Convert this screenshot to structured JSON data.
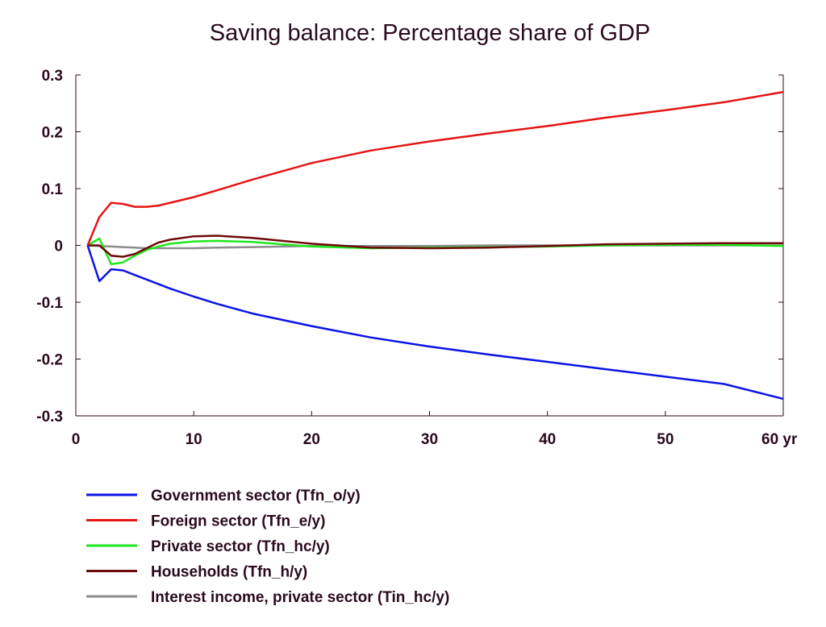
{
  "chart_data": {
    "type": "line",
    "title": "Saving balance: Percentage share of GDP",
    "xlabel": "",
    "ylabel": "",
    "x_unit_label": "yr",
    "xlim": [
      0,
      60
    ],
    "ylim": [
      -0.3,
      0.3
    ],
    "x_ticks": [
      0,
      10,
      20,
      30,
      40,
      50,
      60
    ],
    "x_tick_labels": [
      "0",
      "10",
      "20",
      "30",
      "40",
      "50",
      "60 yr"
    ],
    "y_ticks": [
      0.3,
      0.2,
      0.1,
      0,
      -0.1,
      -0.2,
      -0.3
    ],
    "y_tick_labels": [
      "0.3",
      "0.2",
      "0.1",
      "0",
      "-0.1",
      "-0.2",
      "-0.3"
    ],
    "grid": false,
    "legend_position": "bottom",
    "x": [
      1,
      2,
      3,
      4,
      5,
      6,
      7,
      8,
      10,
      12,
      15,
      20,
      25,
      30,
      35,
      40,
      45,
      50,
      55,
      60
    ],
    "series": [
      {
        "name": "Government sector (Tfn_o/y)",
        "color": "#0a14e6",
        "values": [
          0,
          -0.063,
          -0.042,
          -0.044,
          -0.052,
          -0.06,
          -0.068,
          -0.076,
          -0.09,
          -0.103,
          -0.12,
          -0.142,
          -0.162,
          -0.178,
          -0.192,
          -0.205,
          -0.218,
          -0.231,
          -0.244,
          -0.27
        ]
      },
      {
        "name": "Foreign sector (Tfn_e/y)",
        "color": "#e61414",
        "values": [
          0,
          0.05,
          0.075,
          0.073,
          0.068,
          0.068,
          0.07,
          0.075,
          0.085,
          0.097,
          0.116,
          0.145,
          0.167,
          0.183,
          0.197,
          0.21,
          0.225,
          0.238,
          0.252,
          0.27
        ]
      },
      {
        "name": "Private sector (Tfn_hc/y)",
        "color": "#1ee61e",
        "values": [
          0,
          0.012,
          -0.033,
          -0.03,
          -0.018,
          -0.008,
          -0.002,
          0.003,
          0.007,
          0.008,
          0.006,
          -0.002,
          -0.005,
          -0.004,
          -0.003,
          -0.002,
          0.0,
          0.001,
          0.001,
          -0.001
        ]
      },
      {
        "name": "Households (Tfn_h/y)",
        "color": "#6e0a0a",
        "values": [
          0,
          0,
          -0.018,
          -0.02,
          -0.015,
          -0.005,
          0.005,
          0.01,
          0.016,
          0.017,
          0.013,
          0.003,
          -0.004,
          -0.005,
          -0.004,
          -0.001,
          0.002,
          0.003,
          0.004,
          0.004
        ]
      },
      {
        "name": "Interest income, private sector (Tin_hc/y)",
        "color": "#8c8c8c",
        "values": [
          0,
          -0.001,
          -0.002,
          -0.003,
          -0.004,
          -0.005,
          -0.005,
          -0.005,
          -0.005,
          -0.004,
          -0.003,
          -0.001,
          -0.001,
          -0.001,
          0,
          0,
          0,
          0,
          0,
          0
        ]
      }
    ]
  }
}
